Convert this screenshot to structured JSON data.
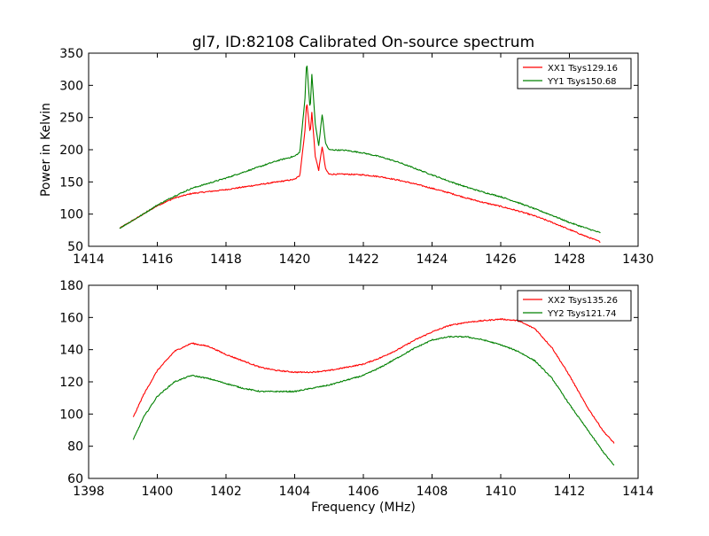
{
  "figure": {
    "title": "gl7, ID:82108 Calibrated On-source spectrum",
    "ylabel": "Power in Kelvin",
    "xlabel": "Frequency (MHz)"
  },
  "colors": {
    "red": "#ff0000",
    "green": "#008000"
  },
  "chart_data": [
    {
      "type": "line",
      "title": "gl7, ID:82108 Calibrated On-source spectrum",
      "ylabel": "Power in Kelvin",
      "xlabel": "",
      "xlim": [
        1414,
        1430
      ],
      "ylim": [
        50,
        350
      ],
      "xticks": [
        1414,
        1416,
        1418,
        1420,
        1422,
        1424,
        1426,
        1428,
        1430
      ],
      "yticks": [
        50,
        100,
        150,
        200,
        250,
        300,
        350
      ],
      "grid": false,
      "legend": "top-right",
      "series": [
        {
          "name": "XX1 Tsys129.16",
          "color": "#ff0000",
          "x": [
            1414.9,
            1415.5,
            1416.0,
            1416.5,
            1417.0,
            1417.5,
            1418.0,
            1418.5,
            1419.0,
            1419.5,
            1420.0,
            1420.15,
            1420.3,
            1420.35,
            1420.45,
            1420.5,
            1420.6,
            1420.7,
            1420.8,
            1420.9,
            1421.0,
            1421.5,
            1422.0,
            1422.5,
            1423.0,
            1423.5,
            1424.0,
            1424.5,
            1425.0,
            1425.5,
            1426.0,
            1426.5,
            1427.0,
            1427.5,
            1428.0,
            1428.5,
            1428.9
          ],
          "values": [
            78,
            97,
            113,
            125,
            132,
            135,
            138,
            142,
            146,
            150,
            154,
            160,
            230,
            276,
            225,
            258,
            190,
            168,
            205,
            170,
            162,
            162,
            161,
            158,
            153,
            147,
            140,
            133,
            125,
            118,
            112,
            105,
            97,
            87,
            76,
            65,
            57
          ]
        },
        {
          "name": "YY1 Tsys150.68",
          "color": "#008000",
          "x": [
            1414.9,
            1415.5,
            1416.0,
            1416.5,
            1417.0,
            1417.5,
            1418.0,
            1418.5,
            1419.0,
            1419.5,
            1420.0,
            1420.15,
            1420.3,
            1420.35,
            1420.45,
            1420.5,
            1420.6,
            1420.7,
            1420.8,
            1420.9,
            1421.0,
            1421.5,
            1422.0,
            1422.5,
            1423.0,
            1423.5,
            1424.0,
            1424.5,
            1425.0,
            1425.5,
            1426.0,
            1426.5,
            1427.0,
            1427.5,
            1428.0,
            1428.5,
            1428.9
          ],
          "values": [
            78,
            97,
            114,
            128,
            140,
            148,
            156,
            165,
            174,
            183,
            190,
            196,
            280,
            339,
            260,
            318,
            240,
            206,
            255,
            210,
            200,
            199,
            195,
            189,
            181,
            171,
            161,
            151,
            142,
            134,
            127,
            118,
            108,
            98,
            87,
            78,
            71
          ]
        }
      ]
    },
    {
      "type": "line",
      "title": "",
      "xlabel": "Frequency (MHz)",
      "ylabel": "",
      "xlim": [
        1398,
        1414
      ],
      "ylim": [
        60,
        180
      ],
      "xticks": [
        1398,
        1400,
        1402,
        1404,
        1406,
        1408,
        1410,
        1412,
        1414
      ],
      "yticks": [
        60,
        80,
        100,
        120,
        140,
        160,
        180
      ],
      "grid": false,
      "legend": "top-right",
      "series": [
        {
          "name": "XX2 Tsys135.26",
          "color": "#ff0000",
          "x": [
            1399.3,
            1399.6,
            1400.0,
            1400.5,
            1401.0,
            1401.5,
            1402.0,
            1402.5,
            1403.0,
            1403.5,
            1404.0,
            1404.5,
            1405.0,
            1405.5,
            1406.0,
            1406.5,
            1407.0,
            1407.5,
            1408.0,
            1408.5,
            1409.0,
            1409.5,
            1410.0,
            1410.5,
            1411.0,
            1411.5,
            1412.0,
            1412.5,
            1413.0,
            1413.3
          ],
          "values": [
            98,
            112,
            127,
            139,
            144,
            142,
            137,
            133,
            129,
            127,
            126,
            126,
            127,
            129,
            131,
            135,
            140,
            146,
            151,
            155,
            157,
            158,
            159,
            158,
            153,
            141,
            124,
            105,
            89,
            82
          ]
        },
        {
          "name": "YY2 Tsys121.74",
          "color": "#008000",
          "x": [
            1399.3,
            1399.6,
            1400.0,
            1400.5,
            1401.0,
            1401.5,
            1402.0,
            1402.5,
            1403.0,
            1403.5,
            1404.0,
            1404.5,
            1405.0,
            1405.5,
            1406.0,
            1406.5,
            1407.0,
            1407.5,
            1408.0,
            1408.5,
            1409.0,
            1409.5,
            1410.0,
            1410.5,
            1411.0,
            1411.5,
            1412.0,
            1412.5,
            1413.0,
            1413.3
          ],
          "values": [
            84,
            98,
            111,
            120,
            124,
            122,
            119,
            116,
            114,
            114,
            114,
            116,
            118,
            121,
            124,
            129,
            135,
            141,
            146,
            148,
            148,
            146,
            143,
            139,
            133,
            122,
            106,
            91,
            76,
            68
          ]
        }
      ]
    }
  ]
}
